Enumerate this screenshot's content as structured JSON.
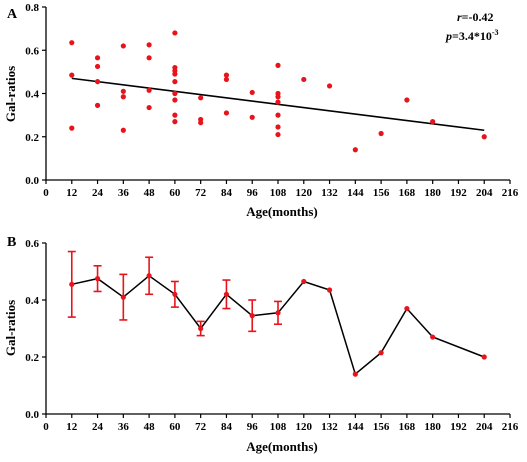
{
  "colors": {
    "points": "#e8141c",
    "errorbars": "#e8141c",
    "lines": "#000000",
    "axes": "#000000",
    "background": "#ffffff"
  },
  "chart_data": [
    {
      "panel": "A",
      "type": "scatter",
      "xlabel": "Age(months)",
      "ylabel": "Gal-ratios",
      "xlim": [
        0,
        216
      ],
      "ylim": [
        0,
        0.8
      ],
      "xticks": [
        0,
        12,
        24,
        36,
        48,
        60,
        72,
        84,
        96,
        108,
        120,
        132,
        144,
        156,
        168,
        180,
        192,
        204,
        216
      ],
      "yticks": [
        0.0,
        0.2,
        0.4,
        0.6,
        0.8
      ],
      "ytick_labels": [
        "0.0",
        "0.2",
        "0.4",
        "0.6",
        "0.8"
      ],
      "grid": false,
      "annotations": {
        "r_label": "r",
        "r_value": "=-0.42",
        "p_label": "p",
        "p_value": "=3.4*10",
        "p_exponent": "-3"
      },
      "points": [
        {
          "x": 12,
          "y": 0.635
        },
        {
          "x": 12,
          "y": 0.485
        },
        {
          "x": 12,
          "y": 0.24
        },
        {
          "x": 24,
          "y": 0.565
        },
        {
          "x": 24,
          "y": 0.525
        },
        {
          "x": 24,
          "y": 0.455
        },
        {
          "x": 24,
          "y": 0.345
        },
        {
          "x": 36,
          "y": 0.62
        },
        {
          "x": 36,
          "y": 0.41
        },
        {
          "x": 36,
          "y": 0.385
        },
        {
          "x": 36,
          "y": 0.23
        },
        {
          "x": 48,
          "y": 0.625
        },
        {
          "x": 48,
          "y": 0.565
        },
        {
          "x": 48,
          "y": 0.415
        },
        {
          "x": 48,
          "y": 0.335
        },
        {
          "x": 60,
          "y": 0.68
        },
        {
          "x": 60,
          "y": 0.52
        },
        {
          "x": 60,
          "y": 0.505
        },
        {
          "x": 60,
          "y": 0.49
        },
        {
          "x": 60,
          "y": 0.455
        },
        {
          "x": 60,
          "y": 0.4
        },
        {
          "x": 60,
          "y": 0.37
        },
        {
          "x": 60,
          "y": 0.3
        },
        {
          "x": 60,
          "y": 0.27
        },
        {
          "x": 72,
          "y": 0.38
        },
        {
          "x": 72,
          "y": 0.28
        },
        {
          "x": 72,
          "y": 0.265
        },
        {
          "x": 84,
          "y": 0.485
        },
        {
          "x": 84,
          "y": 0.465
        },
        {
          "x": 84,
          "y": 0.31
        },
        {
          "x": 96,
          "y": 0.405
        },
        {
          "x": 96,
          "y": 0.29
        },
        {
          "x": 108,
          "y": 0.53
        },
        {
          "x": 108,
          "y": 0.4
        },
        {
          "x": 108,
          "y": 0.385
        },
        {
          "x": 108,
          "y": 0.36
        },
        {
          "x": 108,
          "y": 0.3
        },
        {
          "x": 108,
          "y": 0.245
        },
        {
          "x": 108,
          "y": 0.21
        },
        {
          "x": 120,
          "y": 0.465
        },
        {
          "x": 132,
          "y": 0.435
        },
        {
          "x": 144,
          "y": 0.14
        },
        {
          "x": 156,
          "y": 0.215
        },
        {
          "x": 168,
          "y": 0.37
        },
        {
          "x": 180,
          "y": 0.27
        },
        {
          "x": 204,
          "y": 0.2
        }
      ],
      "regression": {
        "x": [
          12,
          204
        ],
        "y": [
          0.47,
          0.23
        ]
      }
    },
    {
      "panel": "B",
      "type": "line",
      "xlabel": "Age(months)",
      "ylabel": "Gal-ratios",
      "xlim": [
        0,
        216
      ],
      "ylim": [
        0,
        0.6
      ],
      "xticks": [
        0,
        12,
        24,
        36,
        48,
        60,
        72,
        84,
        96,
        108,
        120,
        132,
        144,
        156,
        168,
        180,
        192,
        204,
        216
      ],
      "yticks": [
        0.0,
        0.2,
        0.4,
        0.6
      ],
      "ytick_labels": [
        "0.0",
        "0.2",
        "0.4",
        "0.6"
      ],
      "grid": false,
      "x": [
        12,
        24,
        36,
        48,
        60,
        72,
        84,
        96,
        108,
        120,
        132,
        144,
        156,
        168,
        180,
        204
      ],
      "y": [
        0.455,
        0.475,
        0.41,
        0.485,
        0.42,
        0.3,
        0.42,
        0.345,
        0.355,
        0.465,
        0.435,
        0.14,
        0.215,
        0.37,
        0.27,
        0.2
      ],
      "error": [
        0.115,
        0.045,
        0.08,
        0.065,
        0.045,
        0.025,
        0.05,
        0.055,
        0.04,
        null,
        null,
        null,
        null,
        null,
        null,
        null
      ]
    }
  ]
}
